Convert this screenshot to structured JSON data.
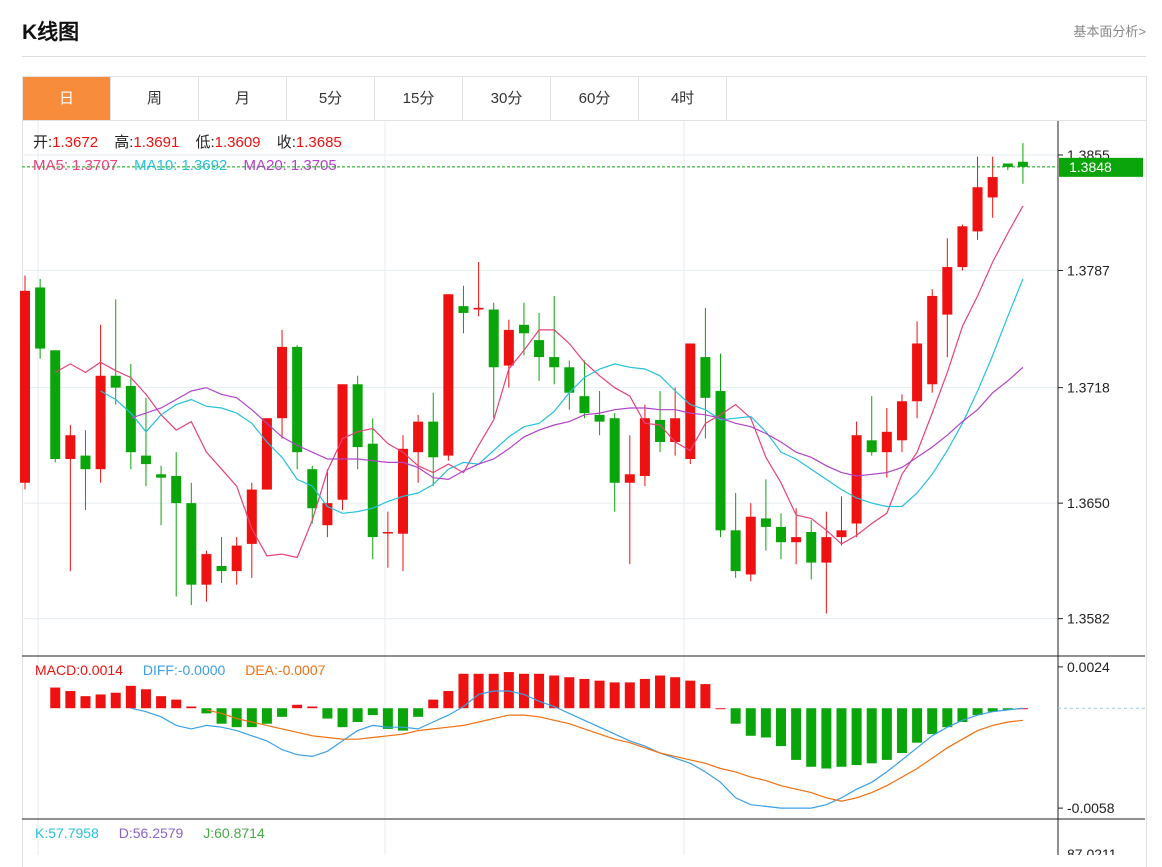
{
  "header": {
    "title": "K线图",
    "more_link": "基本面分析>"
  },
  "tabs": [
    {
      "label": "日",
      "active": true
    },
    {
      "label": "周",
      "active": false
    },
    {
      "label": "月",
      "active": false
    },
    {
      "label": "5分",
      "active": false
    },
    {
      "label": "15分",
      "active": false
    },
    {
      "label": "30分",
      "active": false
    },
    {
      "label": "60分",
      "active": false
    },
    {
      "label": "4时",
      "active": false
    }
  ],
  "ohlc": {
    "open_label": "开:",
    "open": "1.3672",
    "high_label": "高:",
    "high": "1.3691",
    "low_label": "低:",
    "low": "1.3609",
    "close_label": "收:",
    "close": "1.3685"
  },
  "ma": {
    "ma5_label": "MA5:",
    "ma5": "1.3707",
    "ma10_label": "MA10:",
    "ma10": "1.3692",
    "ma20_label": "MA20:",
    "ma20": "1.3705"
  },
  "macd": {
    "macd_label": "MACD:",
    "macd": "0.0014",
    "diff_label": "DIFF:",
    "diff": "-0.0000",
    "dea_label": "DEA:",
    "dea": "-0.0007"
  },
  "kdj": {
    "k_label": "K:",
    "k": "57.7958",
    "d_label": "D:",
    "d": "56.2579",
    "j_label": "J:",
    "j": "60.8714"
  },
  "price_axis": {
    "ticks": [
      "1.3855",
      "1.3787",
      "1.3718",
      "1.3650",
      "1.3582"
    ]
  },
  "macd_axis": {
    "ticks": [
      "0.0024",
      "-0.0058"
    ]
  },
  "kdj_axis": {
    "ticks": [
      "87.0211"
    ]
  },
  "current_price": "1.3848",
  "colors": {
    "up": "#ee1111",
    "down": "#0aa50a",
    "ma5": "#e8417b",
    "ma10": "#26c1dc",
    "ma20": "#b043c6",
    "diff": "#3ba0e6",
    "dea": "#f07010",
    "accent": "#f78c3c",
    "price_tag": "#0aa50a"
  },
  "chart_data": {
    "type": "candlestick",
    "ylim": [
      1.356,
      1.3875
    ],
    "candles": [
      [
        1.3662,
        1.3784,
        1.3658,
        1.3775
      ],
      [
        1.3777,
        1.3782,
        1.3735,
        1.3741
      ],
      [
        1.374,
        1.374,
        1.3674,
        1.3676
      ],
      [
        1.3676,
        1.3696,
        1.361,
        1.369
      ],
      [
        1.3678,
        1.3693,
        1.3646,
        1.367
      ],
      [
        1.367,
        1.3755,
        1.3662,
        1.3725
      ],
      [
        1.3725,
        1.377,
        1.3708,
        1.3718
      ],
      [
        1.3719,
        1.3732,
        1.367,
        1.368
      ],
      [
        1.3678,
        1.3712,
        1.366,
        1.3673
      ],
      [
        1.3667,
        1.3672,
        1.3637,
        1.3665
      ],
      [
        1.3666,
        1.368,
        1.3595,
        1.365
      ],
      [
        1.365,
        1.3662,
        1.359,
        1.3602
      ],
      [
        1.3602,
        1.3622,
        1.3592,
        1.362
      ],
      [
        1.3613,
        1.363,
        1.3603,
        1.361
      ],
      [
        1.361,
        1.363,
        1.3602,
        1.3625
      ],
      [
        1.3626,
        1.3662,
        1.3606,
        1.3658
      ],
      [
        1.3658,
        1.37,
        1.3658,
        1.37
      ],
      [
        1.37,
        1.3752,
        1.3688,
        1.3742
      ],
      [
        1.3742,
        1.3743,
        1.367,
        1.368
      ],
      [
        1.367,
        1.3672,
        1.3638,
        1.3647
      ],
      [
        1.3637,
        1.367,
        1.363,
        1.365
      ],
      [
        1.3652,
        1.372,
        1.3646,
        1.372
      ],
      [
        1.372,
        1.3725,
        1.367,
        1.3683
      ],
      [
        1.3685,
        1.37,
        1.3617,
        1.363
      ],
      [
        1.3633,
        1.3645,
        1.3612,
        1.3633
      ],
      [
        1.3632,
        1.369,
        1.361,
        1.3682
      ],
      [
        1.368,
        1.3702,
        1.3662,
        1.3698
      ],
      [
        1.3698,
        1.3715,
        1.366,
        1.3677
      ],
      [
        1.3678,
        1.3773,
        1.3675,
        1.3773
      ],
      [
        1.3766,
        1.3778,
        1.375,
        1.3762
      ],
      [
        1.3764,
        1.3792,
        1.376,
        1.3765
      ],
      [
        1.3764,
        1.3768,
        1.37,
        1.373
      ],
      [
        1.3731,
        1.3758,
        1.3718,
        1.3752
      ],
      [
        1.3755,
        1.3768,
        1.3737,
        1.375
      ],
      [
        1.3746,
        1.3762,
        1.3722,
        1.3736
      ],
      [
        1.3736,
        1.3772,
        1.372,
        1.373
      ],
      [
        1.373,
        1.3734,
        1.3705,
        1.3715
      ],
      [
        1.3713,
        1.3734,
        1.37,
        1.3703
      ],
      [
        1.3702,
        1.3716,
        1.369,
        1.3698
      ],
      [
        1.37,
        1.3703,
        1.3645,
        1.3662
      ],
      [
        1.3662,
        1.369,
        1.3614,
        1.3667
      ],
      [
        1.3666,
        1.3708,
        1.366,
        1.37
      ],
      [
        1.3699,
        1.3716,
        1.368,
        1.3686
      ],
      [
        1.3686,
        1.3718,
        1.3678,
        1.37
      ],
      [
        1.3676,
        1.3742,
        1.3673,
        1.3744
      ],
      [
        1.3736,
        1.3765,
        1.3688,
        1.3712
      ],
      [
        1.3716,
        1.3738,
        1.363,
        1.3634
      ],
      [
        1.3634,
        1.3656,
        1.3606,
        1.361
      ],
      [
        1.3608,
        1.365,
        1.3604,
        1.3642
      ],
      [
        1.3641,
        1.3664,
        1.3622,
        1.3636
      ],
      [
        1.3636,
        1.3644,
        1.3617,
        1.3627
      ],
      [
        1.3627,
        1.3647,
        1.3614,
        1.363
      ],
      [
        1.3633,
        1.364,
        1.3605,
        1.3615
      ],
      [
        1.3615,
        1.3645,
        1.3585,
        1.363
      ],
      [
        1.363,
        1.3654,
        1.3625,
        1.3634
      ],
      [
        1.3638,
        1.3698,
        1.363,
        1.369
      ],
      [
        1.3687,
        1.3713,
        1.3678,
        1.368
      ],
      [
        1.368,
        1.3706,
        1.3665,
        1.3692
      ],
      [
        1.3687,
        1.3714,
        1.368,
        1.371
      ],
      [
        1.371,
        1.3757,
        1.37,
        1.3744
      ],
      [
        1.372,
        1.3776,
        1.3715,
        1.3772
      ],
      [
        1.3761,
        1.3806,
        1.3736,
        1.3789
      ],
      [
        1.3789,
        1.3814,
        1.3787,
        1.3813
      ],
      [
        1.381,
        1.3854,
        1.3805,
        1.3836
      ],
      [
        1.383,
        1.3854,
        1.3818,
        1.3842
      ],
      [
        1.385,
        1.385,
        1.3846,
        1.3848
      ],
      [
        1.3851,
        1.3862,
        1.3838,
        1.3848
      ]
    ],
    "ma5": [
      1.3727,
      1.3732,
      1.3727,
      1.3733,
      1.3728,
      1.3724,
      1.3714,
      1.3702,
      1.3693,
      1.3698,
      1.368,
      1.367,
      1.366,
      1.3635,
      1.3619,
      1.362,
      1.3618,
      1.364,
      1.3669,
      1.3688,
      1.3692,
      1.3694,
      1.3685,
      1.368,
      1.3672,
      1.3668,
      1.3673,
      1.3668,
      1.3684,
      1.3699,
      1.3729,
      1.374,
      1.3752,
      1.3752,
      1.3744,
      1.3733,
      1.3725,
      1.3718,
      1.3713,
      1.3697,
      1.3696,
      1.3686,
      1.3681,
      1.3697,
      1.3702,
      1.3708,
      1.37,
      1.3677,
      1.3662,
      1.3643,
      1.3641,
      1.3634,
      1.3626,
      1.3631,
      1.3638,
      1.3644,
      1.3667,
      1.368,
      1.3703,
      1.3727,
      1.3754,
      1.3772,
      1.3792,
      1.3809,
      1.3825
    ],
    "ma10": [
      1.3716,
      1.3711,
      1.3703,
      1.3692,
      1.3702,
      1.3708,
      1.3711,
      1.3707,
      1.3706,
      1.3703,
      1.3697,
      1.3686,
      1.3677,
      1.3664,
      1.366,
      1.3648,
      1.3644,
      1.3645,
      1.3647,
      1.3651,
      1.3654,
      1.3656,
      1.3661,
      1.367,
      1.3674,
      1.3673,
      1.3681,
      1.3689,
      1.3695,
      1.3697,
      1.3704,
      1.3715,
      1.3724,
      1.3729,
      1.3732,
      1.373,
      1.3729,
      1.3725,
      1.3716,
      1.3708,
      1.3705,
      1.3699,
      1.37,
      1.3701,
      1.3692,
      1.368,
      1.3676,
      1.367,
      1.3664,
      1.3658,
      1.3653,
      1.365,
      1.3648,
      1.3648,
      1.3656,
      1.3667,
      1.3681,
      1.3697,
      1.3716,
      1.3737,
      1.376,
      1.3782
    ],
    "ma20": [
      1.37,
      1.3703,
      1.3706,
      1.3711,
      1.3716,
      1.3718,
      1.3714,
      1.3712,
      1.3705,
      1.3697,
      1.3689,
      1.3684,
      1.368,
      1.3676,
      1.3676,
      1.3676,
      1.3675,
      1.3674,
      1.3674,
      1.3671,
      1.3665,
      1.3664,
      1.3669,
      1.3673,
      1.3676,
      1.3682,
      1.3689,
      1.3693,
      1.3696,
      1.3698,
      1.3702,
      1.3703,
      1.3705,
      1.3706,
      1.3706,
      1.3705,
      1.3705,
      1.3703,
      1.3702,
      1.37,
      1.3697,
      1.3695,
      1.3691,
      1.3686,
      1.368,
      1.3677,
      1.3672,
      1.3668,
      1.3666,
      1.3667,
      1.3668,
      1.3671,
      1.3677,
      1.3683,
      1.369,
      1.3698,
      1.3705,
      1.3715,
      1.3722,
      1.373
    ],
    "macd_ylim": [
      -0.0062,
      0.0028
    ],
    "macd_hist": [
      0.0012,
      0.001,
      0.0007,
      0.0008,
      0.0009,
      0.0013,
      0.0011,
      0.0007,
      0.0005,
      0.0001,
      -0.0003,
      -0.0009,
      -0.0011,
      -0.0011,
      -0.0009,
      -0.0005,
      0.0002,
      0.0001,
      -0.0006,
      -0.0011,
      -0.0008,
      -0.0004,
      -0.0012,
      -0.0013,
      -0.0005,
      0.0005,
      0.001,
      0.002,
      0.002,
      0.002,
      0.0021,
      0.002,
      0.002,
      0.0019,
      0.0018,
      0.0017,
      0.0016,
      0.0015,
      0.0015,
      0.0017,
      0.0019,
      0.0018,
      0.0016,
      0.0014,
      0.0,
      -0.0009,
      -0.0016,
      -0.0017,
      -0.0022,
      -0.003,
      -0.0034,
      -0.0035,
      -0.0034,
      -0.0033,
      -0.0032,
      -0.003,
      -0.0026,
      -0.002,
      -0.0015,
      -0.0011,
      -0.0008,
      -0.0004,
      -0.0002,
      -0.0001,
      0.0
    ],
    "macd_diff": [
      0.0,
      -0.0002,
      -0.0005,
      -0.001,
      -0.0012,
      -0.001,
      -0.0011,
      -0.0013,
      -0.0016,
      -0.0019,
      -0.0024,
      -0.0027,
      -0.0028,
      -0.0025,
      -0.0019,
      -0.0013,
      -0.001,
      -0.0011,
      -0.0011,
      -0.0012,
      -0.0008,
      -0.0004,
      0.0001,
      0.0008,
      0.001,
      0.001,
      0.0008,
      0.0004,
      0.0001,
      -0.0003,
      -0.0007,
      -0.0011,
      -0.0015,
      -0.0019,
      -0.0022,
      -0.0026,
      -0.0029,
      -0.0032,
      -0.0037,
      -0.0043,
      -0.0052,
      -0.0056,
      -0.0057,
      -0.0058,
      -0.0058,
      -0.0058,
      -0.0056,
      -0.0052,
      -0.0047,
      -0.0043,
      -0.0037,
      -0.003,
      -0.0023,
      -0.0016,
      -0.0011,
      -0.0007,
      -0.0004,
      -0.0002,
      -0.0001,
      0.0
    ],
    "macd_dea": [
      -0.0001,
      -0.0003,
      -0.0006,
      -0.0008,
      -0.001,
      -0.0012,
      -0.0014,
      -0.0016,
      -0.0017,
      -0.0018,
      -0.0018,
      -0.0017,
      -0.0016,
      -0.0015,
      -0.0013,
      -0.0012,
      -0.0011,
      -0.001,
      -0.0008,
      -0.0006,
      -0.0004,
      -0.0004,
      -0.0005,
      -0.0007,
      -0.0009,
      -0.0012,
      -0.0015,
      -0.0018,
      -0.002,
      -0.0023,
      -0.0026,
      -0.0028,
      -0.003,
      -0.0032,
      -0.0035,
      -0.0037,
      -0.004,
      -0.0042,
      -0.0045,
      -0.0047,
      -0.0049,
      -0.0052,
      -0.0054,
      -0.0052,
      -0.0049,
      -0.0045,
      -0.004,
      -0.0035,
      -0.0029,
      -0.0023,
      -0.0018,
      -0.0013,
      -0.001,
      -0.0008,
      -0.0007
    ]
  }
}
